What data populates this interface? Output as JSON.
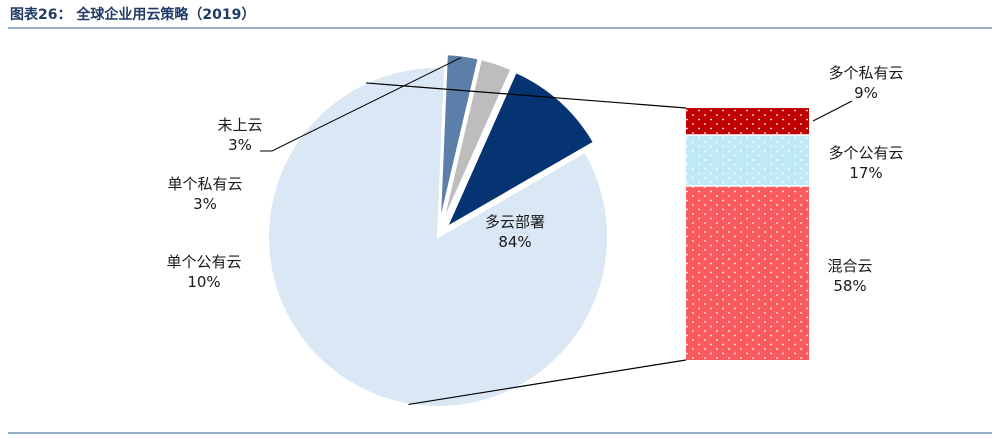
{
  "header": {
    "title": "图表26：  全球企业用云策略（2019）"
  },
  "colors": {
    "rule": "#2e5b8a",
    "multi_cloud": "#dae7f4",
    "single_public": "#063372",
    "single_private": "#bdbdbd",
    "not_on_cloud": "#5b7fa8",
    "multi_private": "#c00000",
    "multi_public": "#bfe9f6",
    "hybrid": "#f85a5e",
    "dot": "#ffffff"
  },
  "chart_data": [
    {
      "type": "pie",
      "slices": [
        {
          "label": "多云部署",
          "value": 84,
          "value_label": "84%",
          "color": "#dae7f4",
          "exploded": false
        },
        {
          "label": "未上云",
          "value": 3,
          "value_label": "3%",
          "color": "#5b7fa8",
          "exploded": true
        },
        {
          "label": "单个私有云",
          "value": 3,
          "value_label": "3%",
          "color": "#bdbdbd",
          "exploded": true
        },
        {
          "label": "单个公有云",
          "value": 10,
          "value_label": "10%",
          "color": "#063372",
          "exploded": true
        }
      ]
    },
    {
      "type": "bar",
      "stacked": true,
      "breakdown_of": "多云部署",
      "segments": [
        {
          "label": "多个私有云",
          "value": 9,
          "value_label": "9%",
          "color": "#c00000"
        },
        {
          "label": "多个公有云",
          "value": 17,
          "value_label": "17%",
          "color": "#bfe9f6"
        },
        {
          "label": "混合云",
          "value": 58,
          "value_label": "58%",
          "color": "#f85a5e"
        }
      ]
    }
  ]
}
